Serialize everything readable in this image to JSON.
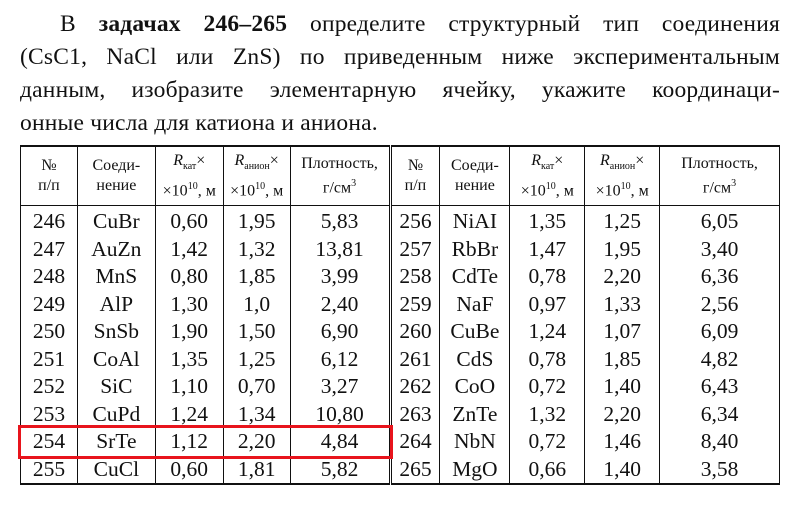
{
  "text": {
    "lines": [
      [
        {
          "text": "В "
        },
        {
          "text": "задачах 246–265",
          "style": "bold"
        },
        {
          "text": " определите структурный тип соединения"
        }
      ],
      [
        {
          "text": "(CsC1, NaCl или ZnS) по приведенным ниже экспериментальным"
        }
      ],
      [
        {
          "text": "данным, изобразите элементарную ячейку, укажите координаци-"
        }
      ],
      [
        {
          "text": "онные числа для катиона и аниона."
        }
      ]
    ]
  },
  "table": {
    "headers": [
      [
        [
          {
            "text": "№"
          }
        ],
        [
          {
            "text": "п/п"
          }
        ]
      ],
      [
        [
          {
            "text": "Соеди-"
          }
        ],
        [
          {
            "text": "нение"
          }
        ]
      ],
      [
        [
          {
            "text": "R",
            "style": "italic"
          },
          {
            "text": "кат",
            "style": "sub"
          },
          {
            "text": "×"
          }
        ],
        [
          {
            "text": "×10"
          },
          {
            "text": "10",
            "style": "sup"
          },
          {
            "text": ", м"
          }
        ]
      ],
      [
        [
          {
            "text": "R",
            "style": "italic"
          },
          {
            "text": "анион",
            "style": "sub"
          },
          {
            "text": "×"
          }
        ],
        [
          {
            "text": "×10"
          },
          {
            "text": "10",
            "style": "sup"
          },
          {
            "text": ", м"
          }
        ]
      ],
      [
        [
          {
            "text": "Плотность,"
          }
        ],
        [
          {
            "text": "г/см"
          },
          {
            "text": "3",
            "style": "sup"
          }
        ]
      ],
      [
        [
          {
            "text": "№"
          }
        ],
        [
          {
            "text": "п/п"
          }
        ]
      ],
      [
        [
          {
            "text": "Соеди-"
          }
        ],
        [
          {
            "text": "нение"
          }
        ]
      ],
      [
        [
          {
            "text": "R",
            "style": "italic"
          },
          {
            "text": "кат",
            "style": "sub"
          },
          {
            "text": "×"
          }
        ],
        [
          {
            "text": "×10"
          },
          {
            "text": "10",
            "style": "sup"
          },
          {
            "text": ", м"
          }
        ]
      ],
      [
        [
          {
            "text": "R",
            "style": "italic"
          },
          {
            "text": "анион",
            "style": "sub"
          },
          {
            "text": "×"
          }
        ],
        [
          {
            "text": "×10"
          },
          {
            "text": "10",
            "style": "sup"
          },
          {
            "text": ", м"
          }
        ]
      ],
      [
        [
          {
            "text": "Плотность,"
          }
        ],
        [
          {
            "text": "г/см"
          },
          {
            "text": "3",
            "style": "sup"
          }
        ]
      ]
    ],
    "rows": [
      [
        "246",
        "CuBr",
        "0,60",
        "1,95",
        "5,83",
        "256",
        "NiAI",
        "1,35",
        "1,25",
        "6,05"
      ],
      [
        "247",
        "AuZn",
        "1,42",
        "1,32",
        "13,81",
        "257",
        "RbBr",
        "1,47",
        "1,95",
        "3,40"
      ],
      [
        "248",
        "MnS",
        "0,80",
        "1,85",
        "3,99",
        "258",
        "CdTe",
        "0,78",
        "2,20",
        "6,36"
      ],
      [
        "249",
        "AlP",
        "1,30",
        "1,0",
        "2,40",
        "259",
        "NaF",
        "0,97",
        "1,33",
        "2,56"
      ],
      [
        "250",
        "SnSb",
        "1,90",
        "1,50",
        "6,90",
        "260",
        "CuBe",
        "1,24",
        "1,07",
        "6,09"
      ],
      [
        "251",
        "CoAl",
        "1,35",
        "1,25",
        "6,12",
        "261",
        "CdS",
        "0,78",
        "1,85",
        "4,82"
      ],
      [
        "252",
        "SiC",
        "1,10",
        "0,70",
        "3,27",
        "262",
        "CoO",
        "0,72",
        "1,40",
        "6,43"
      ],
      [
        "253",
        "CuPd",
        "1,24",
        "1,34",
        "10,80",
        "263",
        "ZnTe",
        "1,32",
        "2,20",
        "6,34"
      ],
      [
        "254",
        "SrTe",
        "1,12",
        "2,20",
        "4,84",
        "264",
        "NbN",
        "0,72",
        "1,46",
        "8,40"
      ],
      [
        "255",
        "CuCl",
        "0,60",
        "1,81",
        "5,82",
        "265",
        "MgO",
        "0,66",
        "1,40",
        "3,58"
      ]
    ],
    "highlight": {
      "row": 8,
      "first_column": 0,
      "last_column": 4,
      "color": "#e8141c"
    }
  }
}
